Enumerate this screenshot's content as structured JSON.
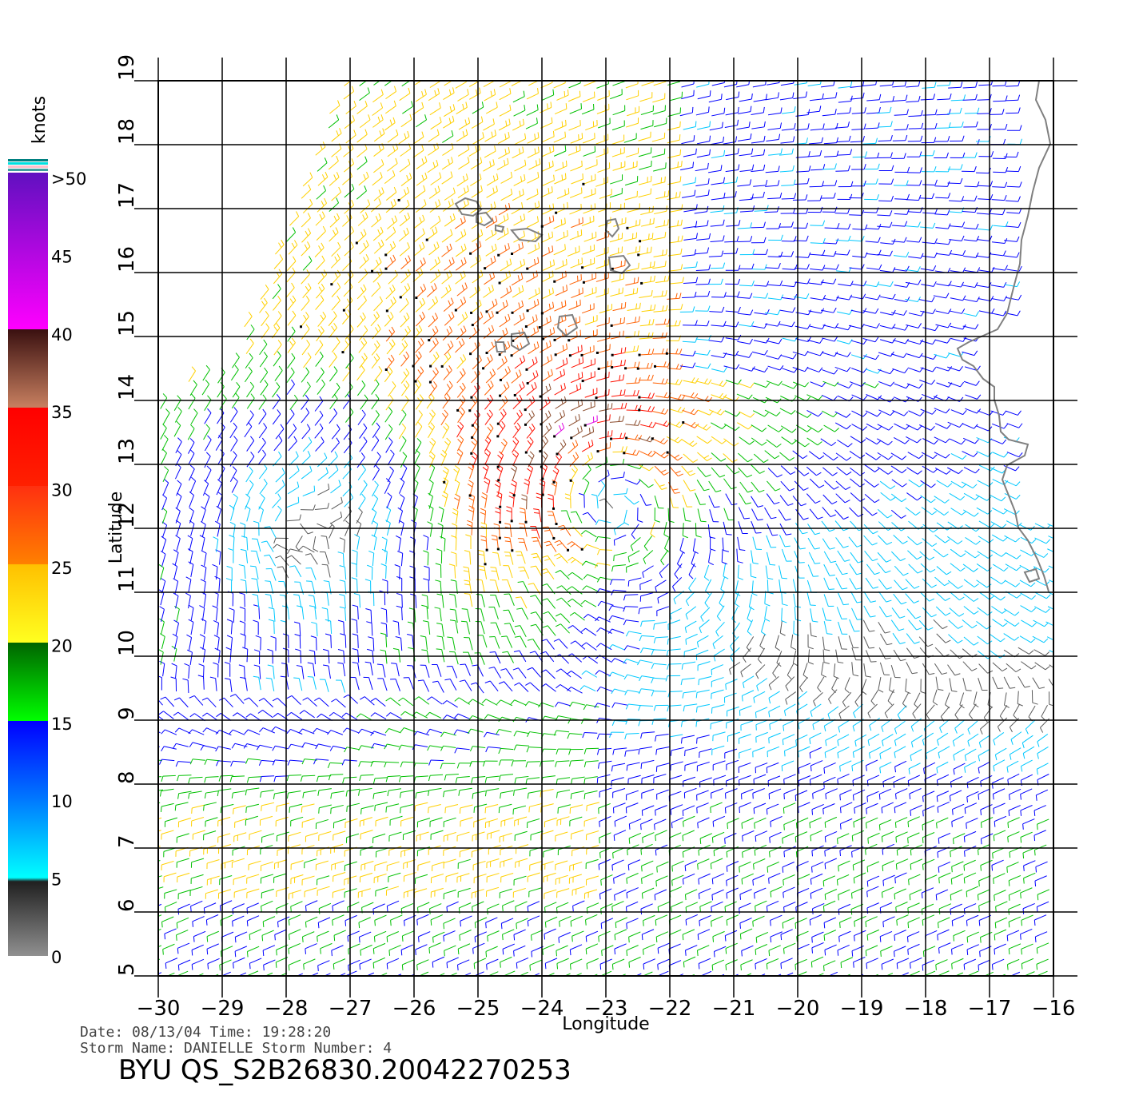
{
  "map": {
    "x_axis_title": "Longitude",
    "y_axis_title": "Latitude",
    "lon_ticks": [
      "−30",
      "−29",
      "−28",
      "−27",
      "−26",
      "−25",
      "−24",
      "−23",
      "−22",
      "−21",
      "−20",
      "−19",
      "−18",
      "−17",
      "−16"
    ],
    "lat_ticks": [
      "5",
      "6",
      "7",
      "8",
      "9",
      "10",
      "11",
      "12",
      "13",
      "14",
      "15",
      "16",
      "17",
      "18",
      "19"
    ],
    "lon_range": [
      -30,
      -16
    ],
    "lat_range": [
      5,
      19
    ],
    "grid": true,
    "storm_center_lon": -23.1,
    "storm_center_lat": 12.6,
    "coastline_color": "#808080"
  },
  "color_scale": {
    "unit_label": "knots",
    "tick_labels": [
      ">50",
      "45",
      "40",
      "35",
      "30",
      "25",
      "20",
      "15",
      "10",
      "5",
      "0"
    ],
    "bands": [
      {
        "from": 0,
        "to": 5,
        "color": "#5a5a5a"
      },
      {
        "from": 5,
        "to": 10,
        "color": "#00c8ff"
      },
      {
        "from": 10,
        "to": 15,
        "color": "#0000ff"
      },
      {
        "from": 15,
        "to": 20,
        "color": "#00c000"
      },
      {
        "from": 20,
        "to": 25,
        "color": "#ffd000"
      },
      {
        "from": 25,
        "to": 30,
        "color": "#ff6000"
      },
      {
        "from": 30,
        "to": 35,
        "color": "#ff1000"
      },
      {
        "from": 35,
        "to": 40,
        "color": "#8a4a2a"
      },
      {
        "from": 40,
        "to": 45,
        "color": "#e000e0"
      },
      {
        "from": 45,
        "to": 50,
        "color": "#8000c0"
      }
    ]
  },
  "footer": {
    "line1": "Date: 08/13/04   Time: 19:28:20",
    "line2": "Storm Name: DANIELLE   Storm Number: 4",
    "product_id": "BYU QS_S2B26830.20042270253"
  }
}
